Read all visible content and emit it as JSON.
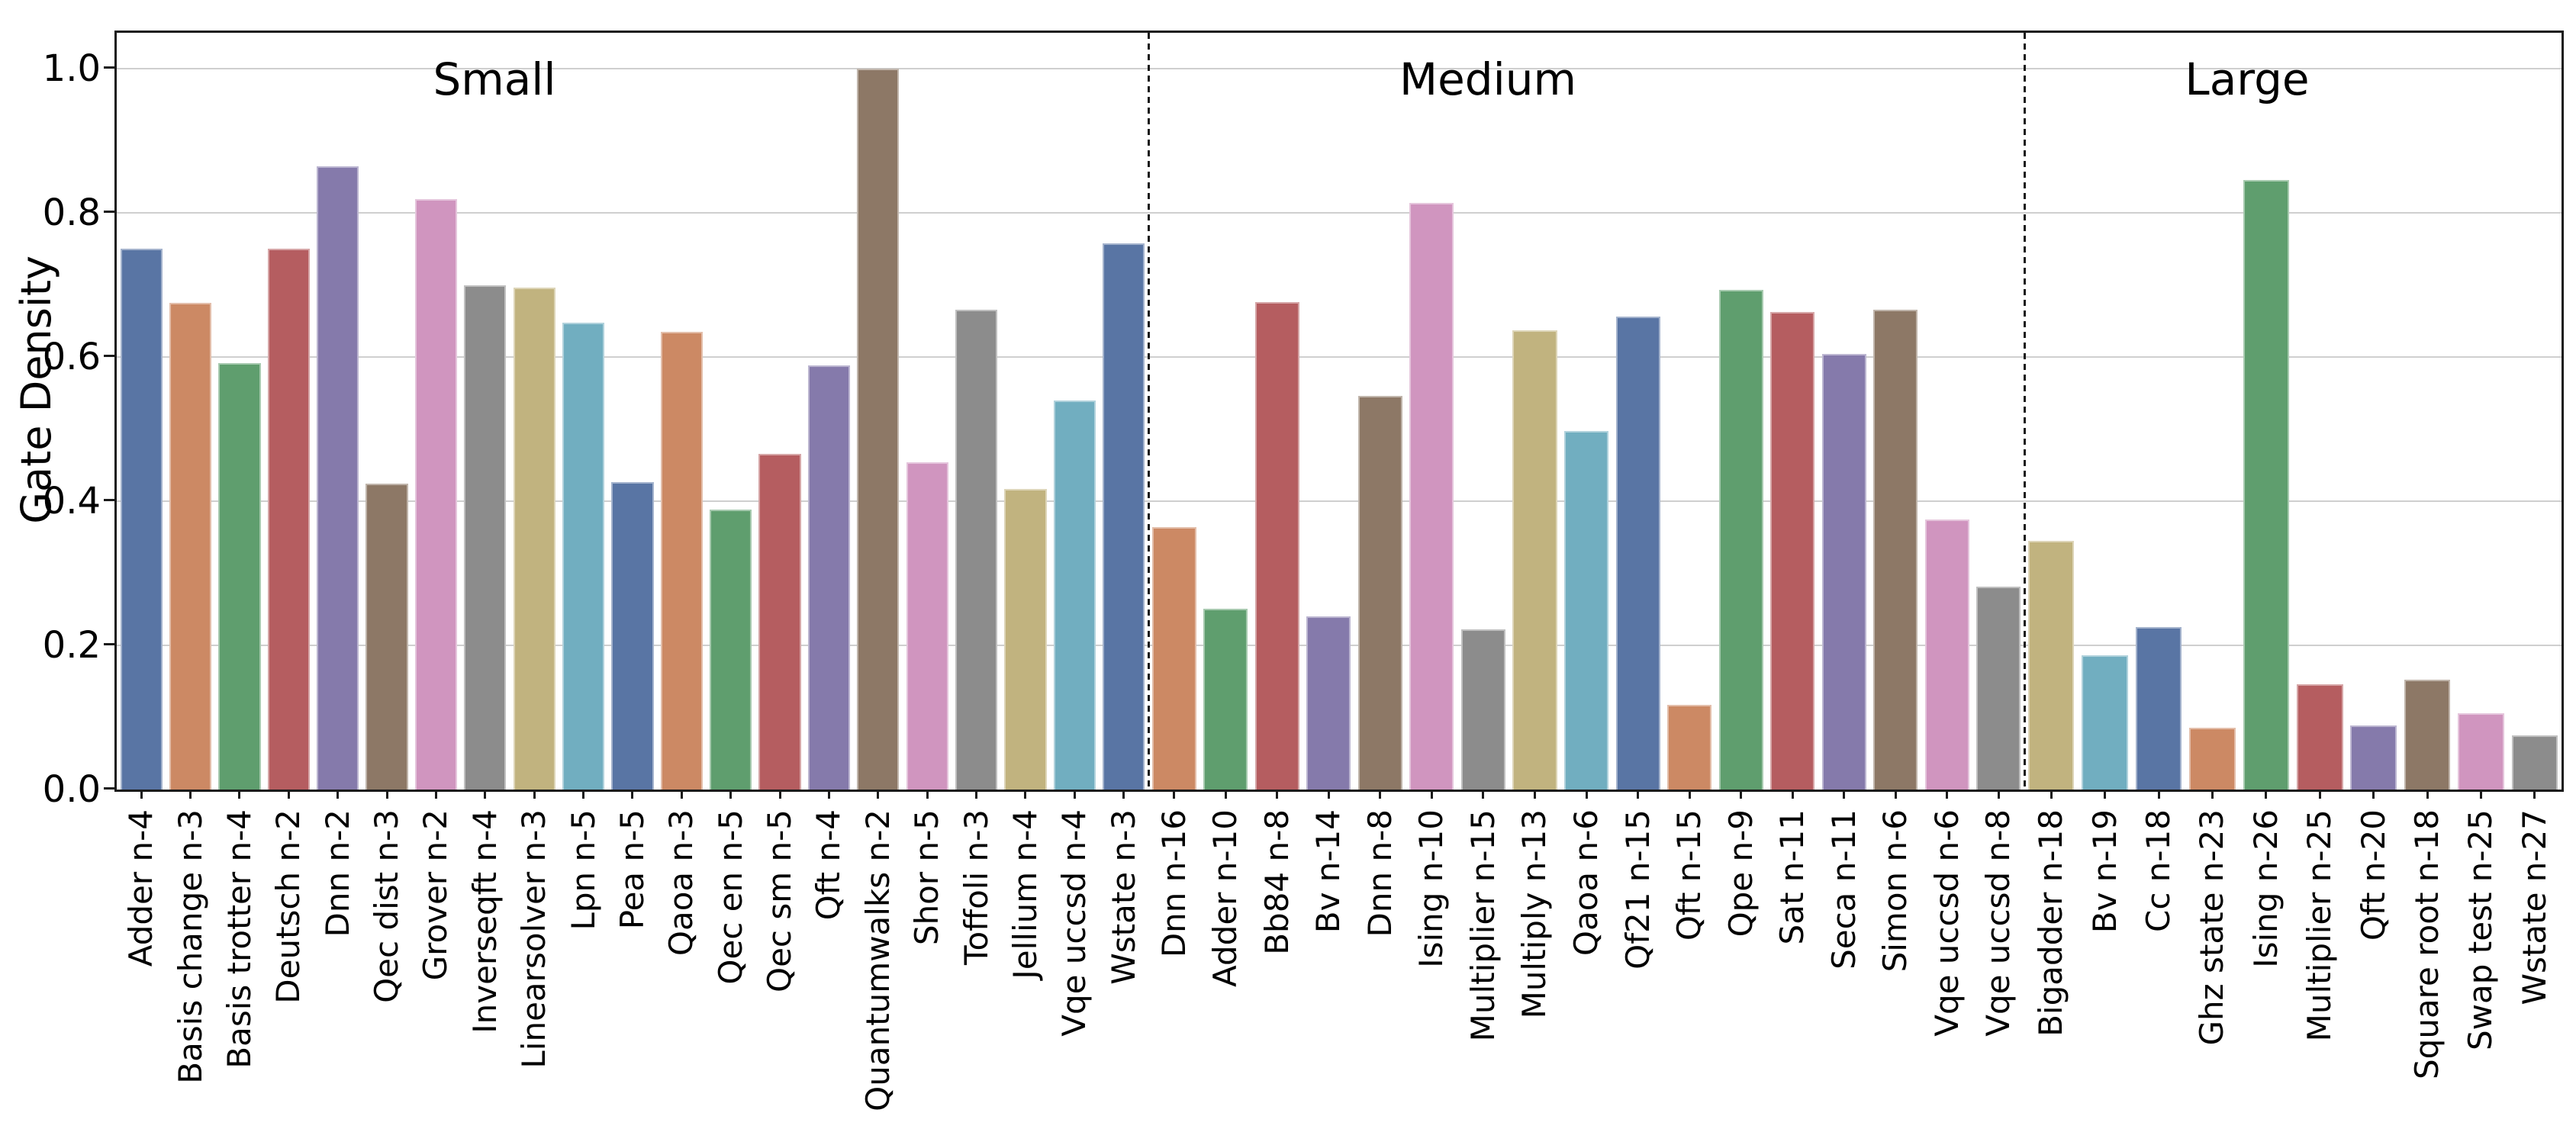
{
  "axis": {
    "ylabel": "Gate Density",
    "ytick_labels": [
      "0.0",
      "0.2",
      "0.4",
      "0.6",
      "0.8",
      "1.0"
    ]
  },
  "panel_titles": {
    "small": "Small",
    "medium": "Medium",
    "large": "Large"
  },
  "chart_data": {
    "type": "bar",
    "title": "",
    "xlabel": "",
    "ylabel": "Gate Density",
    "ylim": [
      0.0,
      1.05
    ],
    "yticks": [
      0.0,
      0.2,
      0.4,
      0.6,
      0.8,
      1.0
    ],
    "grid": true,
    "legend": null,
    "palette": [
      "#5975A4",
      "#CC8964",
      "#5F9E6E",
      "#B55D60",
      "#857AAB",
      "#8D7866",
      "#D095BF",
      "#8C8C8C",
      "#C1B37F",
      "#71AEC0"
    ],
    "panels": [
      {
        "title": "Small",
        "categories": [
          "Adder n-4",
          "Basis change n-3",
          "Basis trotter n-4",
          "Deutsch n-2",
          "Dnn n-2",
          "Qec dist n-3",
          "Grover n-2",
          "Inverseqft n-4",
          "Linearsolver n-3",
          "Lpn n-5",
          "Pea n-5",
          "Qaoa n-3",
          "Qec en n-5",
          "Qec sm n-5",
          "Qft n-4",
          "Quantumwalks n-2",
          "Shor n-5",
          "Toffoli n-3",
          "Jellium n-4",
          "Vqe uccsd n-4",
          "Wstate n-3"
        ],
        "values": [
          0.75,
          0.675,
          0.592,
          0.75,
          0.865,
          0.424,
          0.819,
          0.699,
          0.696,
          0.648,
          0.427,
          0.635,
          0.388,
          0.466,
          0.588,
          1.0,
          0.454,
          0.666,
          0.417,
          0.54,
          0.758
        ],
        "colors": [
          "#5975A4",
          "#CC8964",
          "#5F9E6E",
          "#B55D60",
          "#857AAB",
          "#8D7866",
          "#D095BF",
          "#8C8C8C",
          "#C1B37F",
          "#71AEC0",
          "#5975A4",
          "#CC8964",
          "#5F9E6E",
          "#B55D60",
          "#857AAB",
          "#8D7866",
          "#D095BF",
          "#8C8C8C",
          "#C1B37F",
          "#71AEC0",
          "#5975A4"
        ]
      },
      {
        "title": "Medium",
        "categories": [
          "Dnn n-16",
          "Adder n-10",
          "Bb84 n-8",
          "Bv n-14",
          "Dnn n-8",
          "Ising n-10",
          "Multiplier n-15",
          "Multiply n-13",
          "Qaoa n-6",
          "Qf21 n-15",
          "Qft n-15",
          "Qpe n-9",
          "Sat n-11",
          "Seca n-11",
          "Simon n-6",
          "Vqe uccsd n-6",
          "Vqe uccsd n-8"
        ],
        "values": [
          0.364,
          0.251,
          0.676,
          0.24,
          0.546,
          0.814,
          0.222,
          0.637,
          0.497,
          0.656,
          0.118,
          0.693,
          0.662,
          0.604,
          0.666,
          0.375,
          0.281
        ],
        "colors": [
          "#CC8964",
          "#5F9E6E",
          "#B55D60",
          "#857AAB",
          "#8D7866",
          "#D095BF",
          "#8C8C8C",
          "#C1B37F",
          "#71AEC0",
          "#5975A4",
          "#CC8964",
          "#5F9E6E",
          "#B55D60",
          "#857AAB",
          "#8D7866",
          "#D095BF",
          "#8C8C8C"
        ]
      },
      {
        "title": "Large",
        "categories": [
          "Bigadder n-18",
          "Bv n-19",
          "Cc n-18",
          "Ghz state n-23",
          "Ising n-26",
          "Multiplier n-25",
          "Qft n-20",
          "Square root n-18",
          "Swap test n-25",
          "Wstate n-27"
        ],
        "values": [
          0.345,
          0.186,
          0.225,
          0.086,
          0.845,
          0.146,
          0.089,
          0.152,
          0.106,
          0.075
        ],
        "colors": [
          "#C1B37F",
          "#71AEC0",
          "#5975A4",
          "#CC8964",
          "#5F9E6E",
          "#B55D60",
          "#857AAB",
          "#8D7866",
          "#D095BF",
          "#8C8C8C"
        ]
      }
    ]
  }
}
